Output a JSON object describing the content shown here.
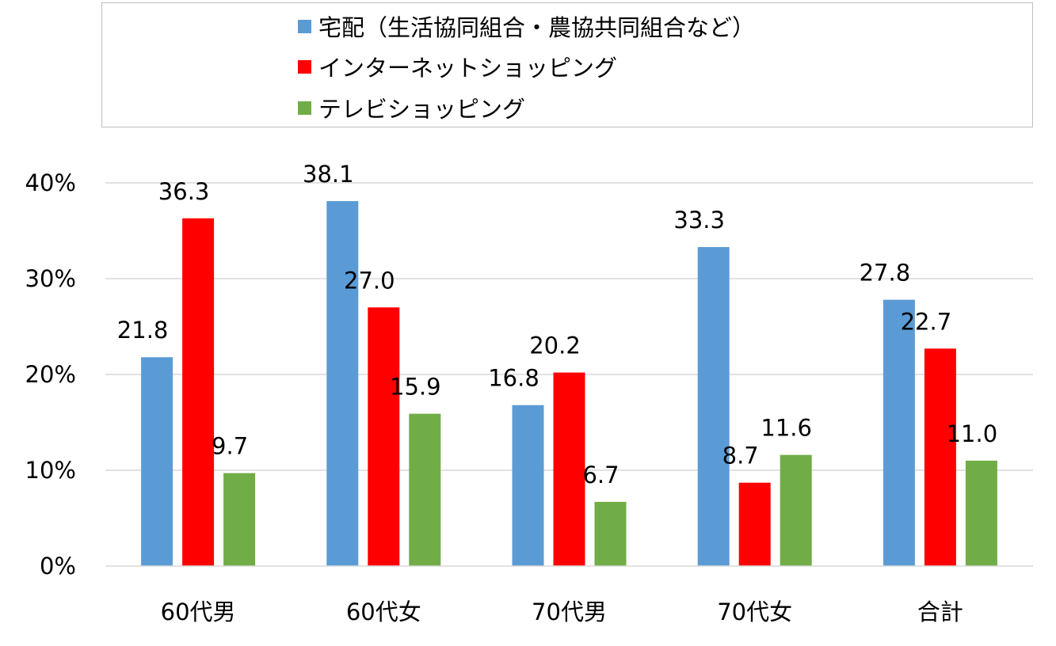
{
  "chart_data": {
    "type": "bar",
    "categories": [
      "60代男",
      "60代女",
      "70代男",
      "70代女",
      "合計"
    ],
    "series": [
      {
        "name": "宅配（生活協同組合・農協共同組合など）",
        "values": [
          21.8,
          38.1,
          16.8,
          33.3,
          27.8
        ],
        "color": "#5b9bd5"
      },
      {
        "name": "インターネットショッピング",
        "values": [
          36.3,
          27.0,
          20.2,
          8.7,
          22.7
        ],
        "color": "#ff0000"
      },
      {
        "name": "テレビショッピング",
        "values": [
          9.7,
          15.9,
          6.7,
          11.6,
          11.0
        ],
        "color": "#70ad47"
      }
    ],
    "y_ticks": [
      "0%",
      "10%",
      "20%",
      "30%",
      "40%"
    ],
    "ylim": [
      0,
      40
    ],
    "grid": true,
    "legend_position": "top",
    "gridline_color": "#d9d9d9",
    "axis_color": "#d9d9d9"
  }
}
